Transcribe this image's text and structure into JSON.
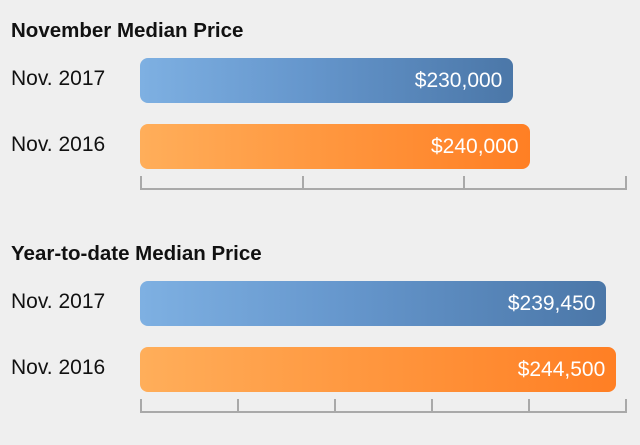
{
  "chart_data": [
    {
      "type": "bar",
      "orientation": "horizontal",
      "title": "November Median Price",
      "categories": [
        "Nov. 2017",
        "Nov. 2016"
      ],
      "values": [
        230000,
        240000
      ],
      "value_labels": [
        "$230,000",
        "$240,000"
      ],
      "colors": [
        "#5b8dc4",
        "#ff8c34"
      ],
      "xlim": [
        0,
        300000
      ],
      "tick_count": 4,
      "tick_labels_shown": false
    },
    {
      "type": "bar",
      "orientation": "horizontal",
      "title": "Year-to-date Median Price",
      "categories": [
        "Nov. 2017",
        "Nov. 2016"
      ],
      "values": [
        239450,
        244500
      ],
      "value_labels": [
        "$239,450",
        "$244,500"
      ],
      "colors": [
        "#5b8dc4",
        "#ff8c34"
      ],
      "xlim": [
        0,
        250000
      ],
      "tick_count": 6,
      "tick_labels_shown": false
    }
  ]
}
